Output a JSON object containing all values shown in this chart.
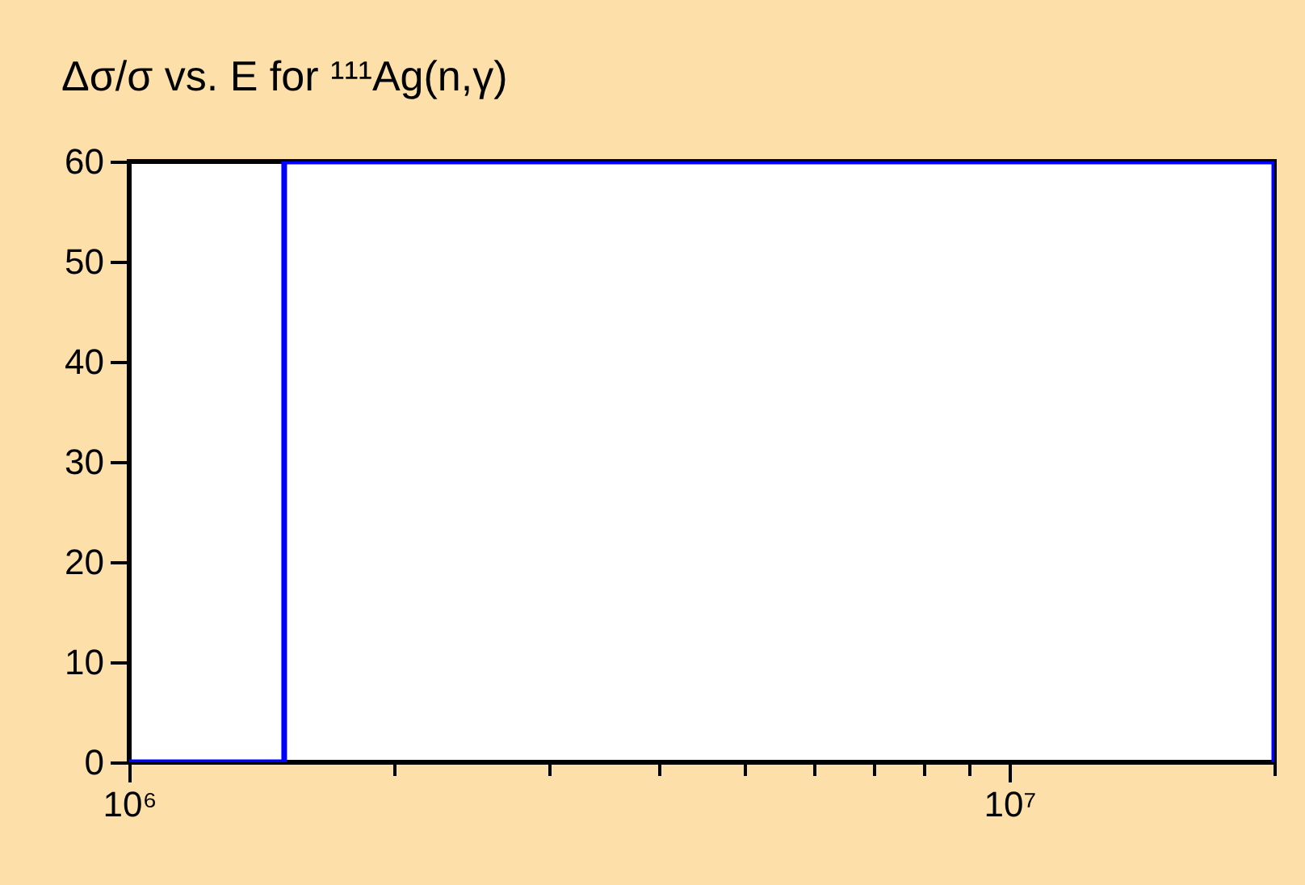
{
  "chart_data": {
    "type": "step",
    "title": "Δσ/σ vs. E for ¹¹¹Ag(n,γ)",
    "x": [
      1000000,
      1500000,
      20000000
    ],
    "series": [
      {
        "color": "#0000ff",
        "values": [
          0,
          60,
          0
        ]
      }
    ],
    "log": "x",
    "xlim": [
      1000000,
      20000000
    ],
    "xticks": [
      {
        "value": 1000000,
        "label": "10⁶"
      },
      {
        "value": 2000000,
        "label": null
      },
      {
        "value": 3000000,
        "label": null
      },
      {
        "value": 4000000,
        "label": null
      },
      {
        "value": 5000000,
        "label": null
      },
      {
        "value": 6000000,
        "label": null
      },
      {
        "value": 7000000,
        "label": null
      },
      {
        "value": 8000000,
        "label": null
      },
      {
        "value": 9000000,
        "label": null
      },
      {
        "value": 10000000,
        "label": "10⁷"
      },
      {
        "value": 20000000,
        "label": null
      }
    ],
    "ylim": [
      0,
      60
    ],
    "yticks": [
      0,
      10,
      20,
      30,
      40,
      50,
      60
    ],
    "grid": false,
    "legend": false,
    "marker": "none",
    "line_style": "solid"
  }
}
